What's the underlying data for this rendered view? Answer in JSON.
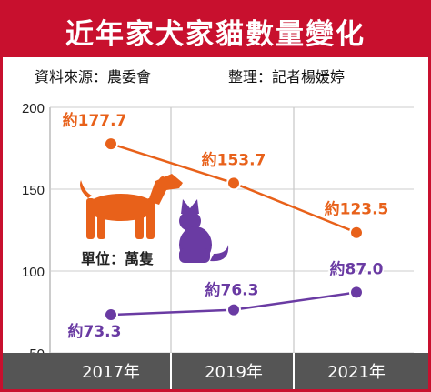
{
  "title": "近年家犬家貓數量變化",
  "source": "資料來源：農委會",
  "editor": "整理：記者楊媛婷",
  "unit": "單位：萬隻",
  "colors": {
    "title_bg": "#c8102e",
    "dog": "#e8611a",
    "cat": "#6a3ba3",
    "axis_band": "#555555"
  },
  "icons": [
    "dog-icon",
    "cat-icon"
  ],
  "chart_data": {
    "type": "line",
    "categories": [
      "2017年",
      "2019年",
      "2021年"
    ],
    "ylim": [
      50,
      200
    ],
    "yticks": [
      "50",
      "100",
      "150",
      "200"
    ],
    "grid": true,
    "series": [
      {
        "values": [
          177.7,
          153.7,
          123.5
        ],
        "labels": [
          "約177.7",
          "約153.7",
          "約123.5"
        ],
        "color": "#e8611a"
      },
      {
        "values": [
          73.3,
          76.3,
          87.0
        ],
        "labels": [
          "約73.3",
          "約76.3",
          "約87.0"
        ],
        "color": "#6a3ba3"
      }
    ]
  }
}
